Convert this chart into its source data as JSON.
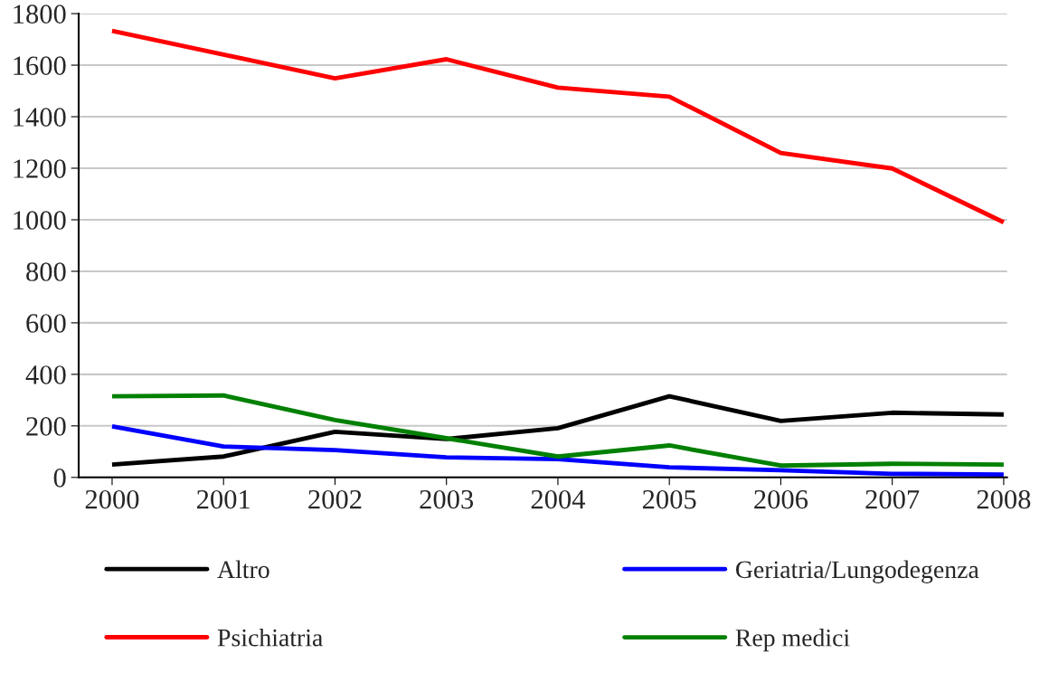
{
  "chart_data": {
    "type": "line",
    "categories": [
      "2000",
      "2001",
      "2002",
      "2003",
      "2004",
      "2005",
      "2006",
      "2007",
      "2008"
    ],
    "series": [
      {
        "name": "Altro",
        "color": "#000000",
        "values": [
          50,
          81,
          177,
          149,
          191,
          315,
          219,
          251,
          244
        ]
      },
      {
        "name": "Geriatria/Lungodegenza",
        "color": "#0000ff",
        "values": [
          198,
          120,
          106,
          78,
          71,
          39,
          28,
          14,
          11
        ]
      },
      {
        "name": "Psichiatria",
        "color": "#ff0000",
        "values": [
          1733,
          1641,
          1549,
          1623,
          1513,
          1478,
          1259,
          1199,
          990
        ]
      },
      {
        "name": "Rep medici",
        "color": "#008000",
        "values": [
          315,
          318,
          223,
          152,
          81,
          124,
          46,
          53,
          50
        ]
      }
    ],
    "ylim": [
      0,
      1800
    ],
    "yticks": [
      0,
      200,
      400,
      600,
      800,
      1000,
      1200,
      1400,
      1600,
      1800
    ],
    "grid": "y",
    "legend": "bottom",
    "marker": "none",
    "line_style": "solid"
  }
}
